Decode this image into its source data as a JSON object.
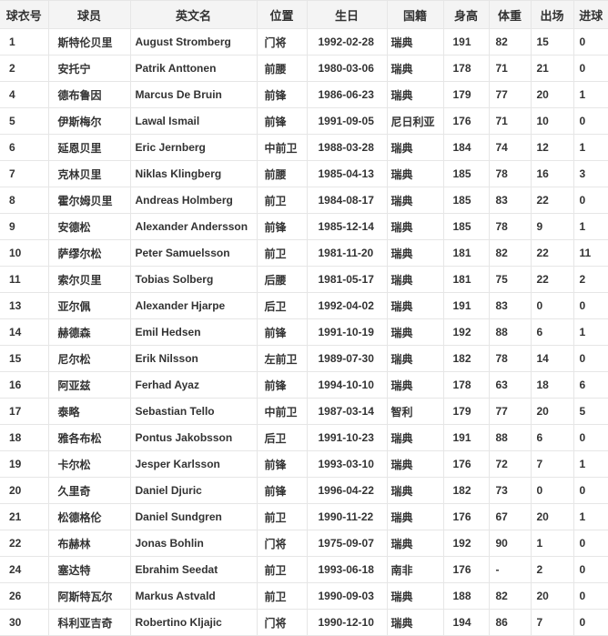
{
  "table": {
    "columns": [
      {
        "key": "jersey-number",
        "label": "球衣号"
      },
      {
        "key": "player-name",
        "label": "球员"
      },
      {
        "key": "english-name",
        "label": "英文名"
      },
      {
        "key": "position",
        "label": "位置"
      },
      {
        "key": "birthday",
        "label": "生日"
      },
      {
        "key": "nationality",
        "label": "国籍"
      },
      {
        "key": "height",
        "label": "身高"
      },
      {
        "key": "weight",
        "label": "体重"
      },
      {
        "key": "appearances",
        "label": "出场"
      },
      {
        "key": "goals",
        "label": "进球"
      }
    ],
    "rows": [
      [
        "1",
        "斯特伦贝里",
        "August Stromberg",
        "门将",
        "1992-02-28",
        "瑞典",
        "191",
        "82",
        "15",
        "0"
      ],
      [
        "2",
        "安托宁",
        "Patrik Anttonen",
        "前腰",
        "1980-03-06",
        "瑞典",
        "178",
        "71",
        "21",
        "0"
      ],
      [
        "4",
        "德布鲁因",
        "Marcus De Bruin",
        "前锋",
        "1986-06-23",
        "瑞典",
        "179",
        "77",
        "20",
        "1"
      ],
      [
        "5",
        "伊斯梅尔",
        "Lawal Ismail",
        "前锋",
        "1991-09-05",
        "尼日利亚",
        "176",
        "71",
        "10",
        "0"
      ],
      [
        "6",
        "延恩贝里",
        "Eric Jernberg",
        "中前卫",
        "1988-03-28",
        "瑞典",
        "184",
        "74",
        "12",
        "1"
      ],
      [
        "7",
        "克林贝里",
        "Niklas Klingberg",
        "前腰",
        "1985-04-13",
        "瑞典",
        "185",
        "78",
        "16",
        "3"
      ],
      [
        "8",
        "霍尔姆贝里",
        "Andreas Holmberg",
        "前卫",
        "1984-08-17",
        "瑞典",
        "185",
        "83",
        "22",
        "0"
      ],
      [
        "9",
        "安德松",
        "Alexander Andersson",
        "前锋",
        "1985-12-14",
        "瑞典",
        "185",
        "78",
        "9",
        "1"
      ],
      [
        "10",
        "萨缪尔松",
        "Peter Samuelsson",
        "前卫",
        "1981-11-20",
        "瑞典",
        "181",
        "82",
        "22",
        "11"
      ],
      [
        "11",
        "索尔贝里",
        "Tobias Solberg",
        "后腰",
        "1981-05-17",
        "瑞典",
        "181",
        "75",
        "22",
        "2"
      ],
      [
        "13",
        "亚尔佩",
        "Alexander Hjarpe",
        "后卫",
        "1992-04-02",
        "瑞典",
        "191",
        "83",
        "0",
        "0"
      ],
      [
        "14",
        "赫德森",
        "Emil Hedsen",
        "前锋",
        "1991-10-19",
        "瑞典",
        "192",
        "88",
        "6",
        "1"
      ],
      [
        "15",
        "尼尔松",
        "Erik Nilsson",
        "左前卫",
        "1989-07-30",
        "瑞典",
        "182",
        "78",
        "14",
        "0"
      ],
      [
        "16",
        "阿亚兹",
        "Ferhad Ayaz",
        "前锋",
        "1994-10-10",
        "瑞典",
        "178",
        "63",
        "18",
        "6"
      ],
      [
        "17",
        "泰略",
        "Sebastian Tello",
        "中前卫",
        "1987-03-14",
        "智利",
        "179",
        "77",
        "20",
        "5"
      ],
      [
        "18",
        "雅各布松",
        "Pontus Jakobsson",
        "后卫",
        "1991-10-23",
        "瑞典",
        "191",
        "88",
        "6",
        "0"
      ],
      [
        "19",
        "卡尔松",
        "Jesper Karlsson",
        "前锋",
        "1993-03-10",
        "瑞典",
        "176",
        "72",
        "7",
        "1"
      ],
      [
        "20",
        "久里奇",
        "Daniel Djuric",
        "前锋",
        "1996-04-22",
        "瑞典",
        "182",
        "73",
        "0",
        "0"
      ],
      [
        "21",
        "松德格伦",
        "Daniel Sundgren",
        "前卫",
        "1990-11-22",
        "瑞典",
        "176",
        "67",
        "20",
        "1"
      ],
      [
        "22",
        "布赫林",
        "Jonas Bohlin",
        "门将",
        "1975-09-07",
        "瑞典",
        "192",
        "90",
        "1",
        "0"
      ],
      [
        "24",
        "塞达特",
        "Ebrahim Seedat",
        "前卫",
        "1993-06-18",
        "南非",
        "176",
        "-",
        "2",
        "0"
      ],
      [
        "26",
        "阿斯特瓦尔",
        "Markus Astvald",
        "前卫",
        "1990-09-03",
        "瑞典",
        "188",
        "82",
        "20",
        "0"
      ],
      [
        "30",
        "科利亚吉奇",
        "Robertino Kljajic",
        "门将",
        "1990-12-10",
        "瑞典",
        "194",
        "86",
        "7",
        "0"
      ]
    ]
  },
  "colors": {
    "header_bg": "#f4f4f4",
    "border": "#e6e6e6",
    "text": "#333333",
    "row_bg": "#ffffff"
  }
}
